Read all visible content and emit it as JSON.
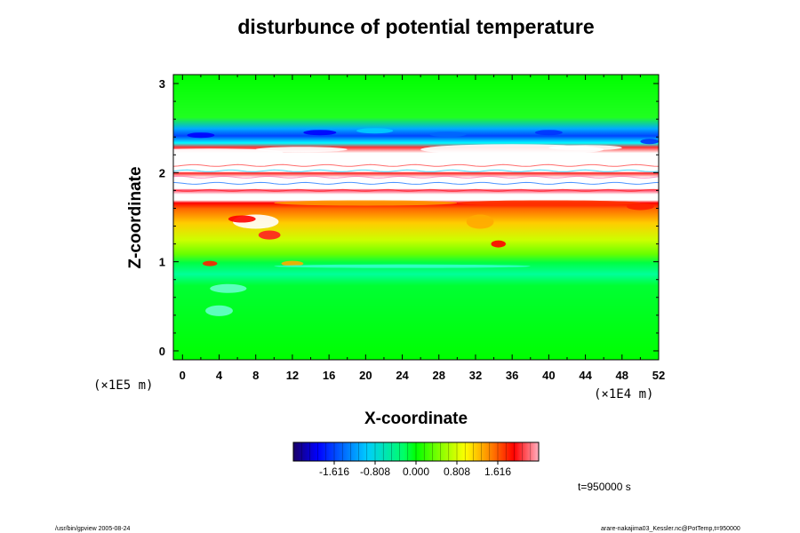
{
  "chart_data": {
    "type": "heatmap",
    "title": "disturbunce of potential temperature",
    "xlabel": "X-coordinate",
    "ylabel": "Z-coordinate",
    "x_ticks": [
      "0",
      "4",
      "8",
      "12",
      "16",
      "20",
      "24",
      "28",
      "32",
      "36",
      "40",
      "44",
      "48",
      "52"
    ],
    "y_ticks": [
      "0",
      "1",
      "2",
      "3"
    ],
    "x_scale_label": "(×1E4 m)",
    "y_scale_label": "(×1E5 m)",
    "xlim": [
      -1,
      52
    ],
    "ylim": [
      -0.1,
      3.1
    ],
    "colorbar": {
      "ticks": [
        "-1.616",
        "-0.808",
        "0.000",
        "0.808",
        "1.616"
      ],
      "range": [
        -2.424,
        2.424
      ],
      "colors": [
        "#1a0066",
        "#0000ff",
        "#00ccff",
        "#00ff66",
        "#00ff00",
        "#88ff00",
        "#ffff00",
        "#ff8800",
        "#ff0000",
        "#ffb0c0"
      ]
    },
    "bands": [
      {
        "z": [
          -0.1,
          0.95
        ],
        "level": "near 0"
      },
      {
        "z": [
          0.95,
          1.1
        ],
        "level": "slightly negative"
      },
      {
        "z": [
          1.1,
          1.7
        ],
        "level": "positive 0.8-1.6"
      },
      {
        "z": [
          1.7,
          2.3
        ],
        "level": "above range (white) with strong oscillation"
      },
      {
        "z": [
          2.3,
          2.5
        ],
        "level": "negative -0.8 to -1.6"
      },
      {
        "z": [
          2.5,
          3.1
        ],
        "level": "near 0"
      }
    ]
  },
  "time_label": "t=950000 s",
  "footer_left": "/usr/bin/gpview 2005-08-24",
  "footer_right": "arare-nakajima03_Kessler.nc@PotTemp,t=950000"
}
